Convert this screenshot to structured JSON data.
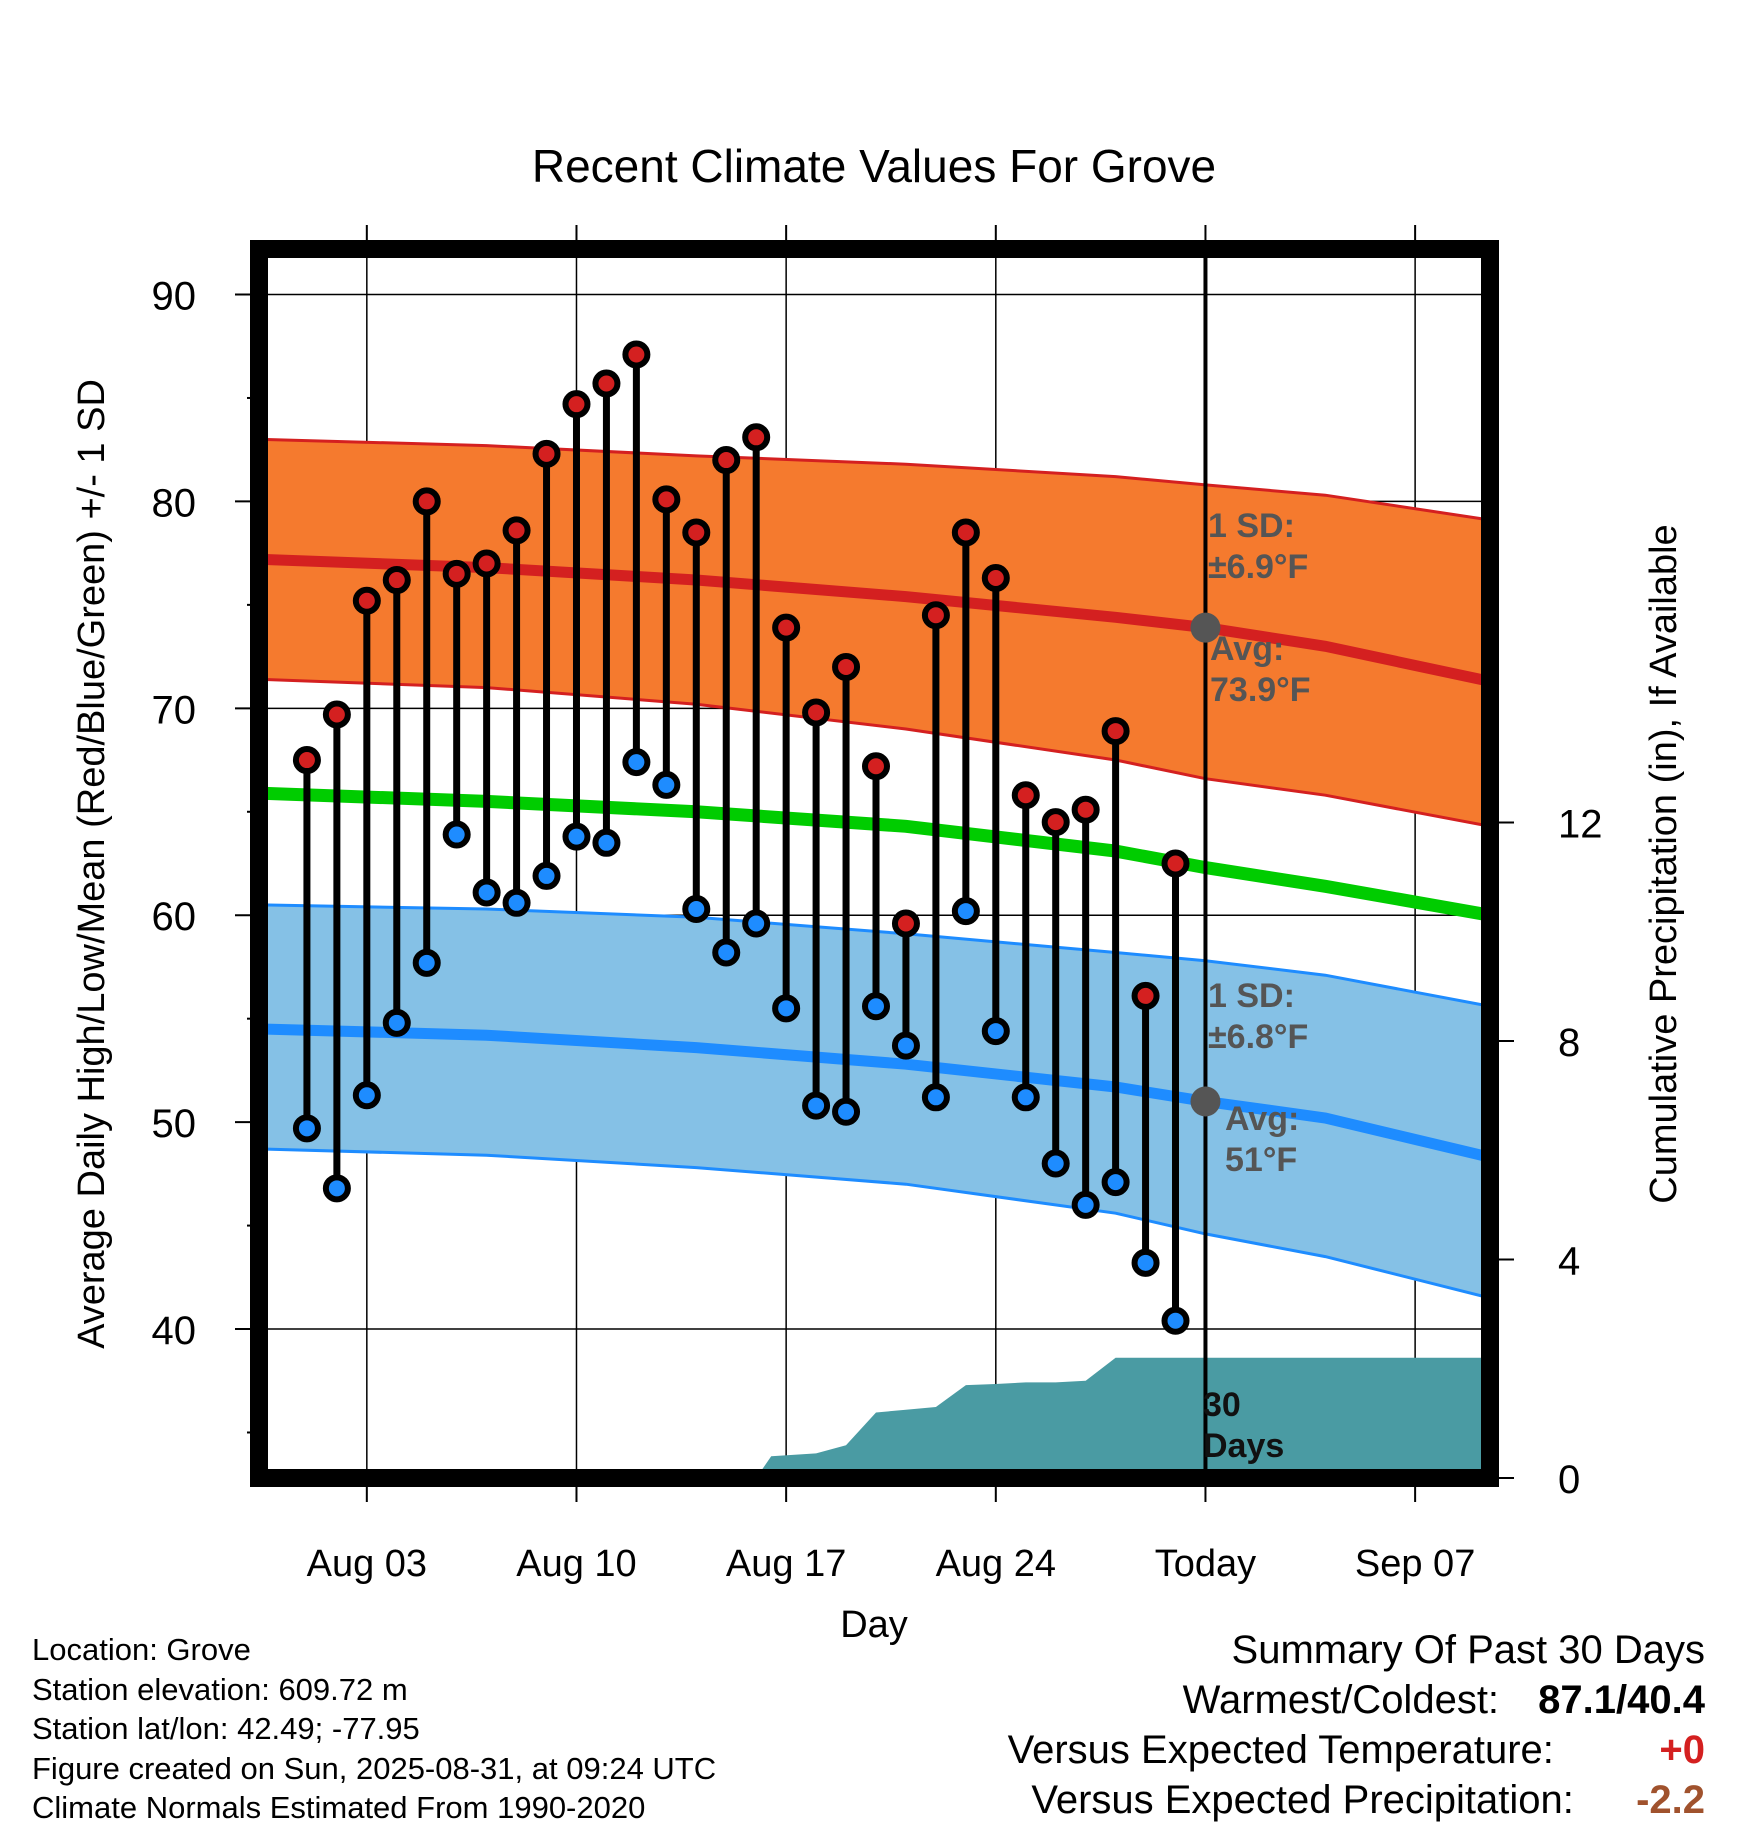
{
  "chart_data": {
    "type": "line",
    "title": "Recent Climate Values For Grove",
    "xlabel": "Day",
    "ylabel": "Average Daily High/Low/Mean (Red/Blue/Green) +/- 1 SD",
    "y2label": "Cumulative Precipitation (in), If Available",
    "x_ticks": [
      "Aug 03",
      "Aug 10",
      "Aug 17",
      "Aug 24",
      "Today",
      "Sep 07"
    ],
    "y_ticks": [
      40,
      50,
      60,
      70,
      80,
      90
    ],
    "y2_ticks": [
      0,
      4,
      8,
      12
    ],
    "ylim": [
      32.8,
      92.2
    ],
    "y2lim": [
      0,
      22.5
    ],
    "x_range_days": [
      -31.6,
      9.5
    ],
    "grid": true,
    "annotations": {
      "high_sd": "1 SD:",
      "high_sd_value": "±6.9°F",
      "high_avg": "Avg:",
      "high_avg_value": "73.9°F",
      "low_sd": "1 SD:",
      "low_sd_value": "±6.8°F",
      "low_avg": "Avg:",
      "low_avg_value": "51°F",
      "window": "30",
      "window_unit": "Days"
    },
    "normal_high": {
      "x": [
        -31.5,
        -24,
        -17,
        -10,
        -3,
        0,
        4,
        9.5
      ],
      "y": [
        77.2,
        76.8,
        76.2,
        75.4,
        74.4,
        73.9,
        73.0,
        71.3
      ]
    },
    "normal_high_upper": {
      "x": [
        -31.5,
        -24,
        -17,
        -10,
        -3,
        0,
        4,
        9.5
      ],
      "y": [
        83.0,
        82.7,
        82.2,
        81.8,
        81.2,
        80.8,
        80.3,
        79.1
      ]
    },
    "normal_high_lower": {
      "x": [
        -31.5,
        -24,
        -17,
        -10,
        -3,
        0,
        4,
        9.5
      ],
      "y": [
        71.4,
        71.0,
        70.2,
        69.0,
        67.5,
        66.6,
        65.8,
        64.3
      ]
    },
    "normal_mean": {
      "x": [
        -31.5,
        -24,
        -17,
        -10,
        -3,
        0,
        4,
        9.5
      ],
      "y": [
        65.9,
        65.5,
        65.0,
        64.3,
        63.1,
        62.3,
        61.4,
        60.0
      ]
    },
    "normal_low": {
      "x": [
        -31.5,
        -24,
        -17,
        -10,
        -3,
        0,
        4,
        9.5
      ],
      "y": [
        54.5,
        54.2,
        53.6,
        52.8,
        51.7,
        51.0,
        50.2,
        48.3
      ]
    },
    "normal_low_upper": {
      "x": [
        -31.5,
        -24,
        -17,
        -10,
        -3,
        0,
        4,
        9.5
      ],
      "y": [
        60.5,
        60.3,
        59.9,
        59.1,
        58.2,
        57.8,
        57.1,
        55.6
      ]
    },
    "normal_low_lower": {
      "x": [
        -31.5,
        -24,
        -17,
        -10,
        -3,
        0,
        4,
        9.5
      ],
      "y": [
        48.7,
        48.4,
        47.8,
        47.0,
        45.6,
        44.6,
        43.5,
        41.5
      ]
    },
    "daily_high": {
      "x": [
        -30,
        -29,
        -28,
        -27,
        -26,
        -25,
        -24,
        -23,
        -22,
        -21,
        -20,
        -19,
        -18,
        -17,
        -16,
        -15,
        -14,
        -13,
        -12,
        -11,
        -10,
        -9,
        -8,
        -7,
        -6,
        -5,
        -4,
        -3,
        -2,
        -1
      ],
      "y": [
        67.5,
        69.7,
        75.2,
        76.2,
        80.0,
        76.5,
        77.0,
        78.6,
        82.3,
        84.7,
        85.7,
        87.1,
        80.1,
        78.5,
        82.0,
        83.1,
        73.9,
        69.8,
        72.0,
        67.2,
        59.6,
        74.5,
        78.5,
        76.3,
        65.8,
        64.5,
        65.1,
        68.9,
        56.1,
        62.5
      ]
    },
    "daily_low": {
      "x": [
        -30,
        -29,
        -28,
        -27,
        -26,
        -25,
        -24,
        -23,
        -22,
        -21,
        -20,
        -19,
        -18,
        -17,
        -16,
        -15,
        -14,
        -13,
        -12,
        -11,
        -10,
        -9,
        -8,
        -7,
        -6,
        -5,
        -4,
        -3,
        -2,
        -1
      ],
      "y": [
        49.7,
        46.8,
        51.3,
        54.8,
        57.7,
        63.9,
        61.1,
        60.6,
        61.9,
        63.8,
        63.5,
        67.4,
        66.3,
        60.3,
        58.2,
        59.6,
        55.5,
        50.8,
        50.5,
        55.6,
        53.7,
        51.2,
        60.2,
        54.4,
        51.2,
        48.0,
        46.0,
        47.1,
        43.2,
        40.4
      ]
    },
    "precip_cumulative": {
      "x": [
        -31.5,
        -15,
        -14.5,
        -13,
        -12,
        -11,
        -10,
        -9,
        -8,
        -7,
        -6,
        -5,
        -4,
        -3,
        -2,
        -1,
        0,
        9.5
      ],
      "y": [
        0,
        0,
        0.4,
        0.45,
        0.6,
        1.2,
        1.25,
        1.3,
        1.7,
        1.72,
        1.75,
        1.75,
        1.78,
        2.2,
        2.2,
        2.2,
        2.2,
        2.2
      ]
    }
  },
  "footer": {
    "location": "Location: Grove",
    "elevation": "Station elevation: 609.72 m",
    "latlon": "Station lat/lon: 42.49; -77.95",
    "created": "Figure created on Sun, 2025-08-31, at 09:24 UTC",
    "normals": "Climate Normals Estimated From 1990-2020"
  },
  "summary": {
    "heading": "Summary Of Past 30 Days",
    "warmest_label": "Warmest/Coldest:",
    "warmest_value": "87.1/40.4",
    "temp_label": "Versus Expected Temperature:",
    "temp_value": "+0",
    "precip_label": "Versus Expected Precipitation:",
    "precip_value": "-2.2"
  },
  "colors": {
    "high": "#d42020",
    "high_band": "#f57a2e",
    "mean": "#00cc00",
    "low": "#1e8cff",
    "low_band": "#85c1e6",
    "precip": "#4a9ba3",
    "temp_delta": "#d42020",
    "precip_delta": "#a0522d",
    "today_marker": "#555555"
  }
}
